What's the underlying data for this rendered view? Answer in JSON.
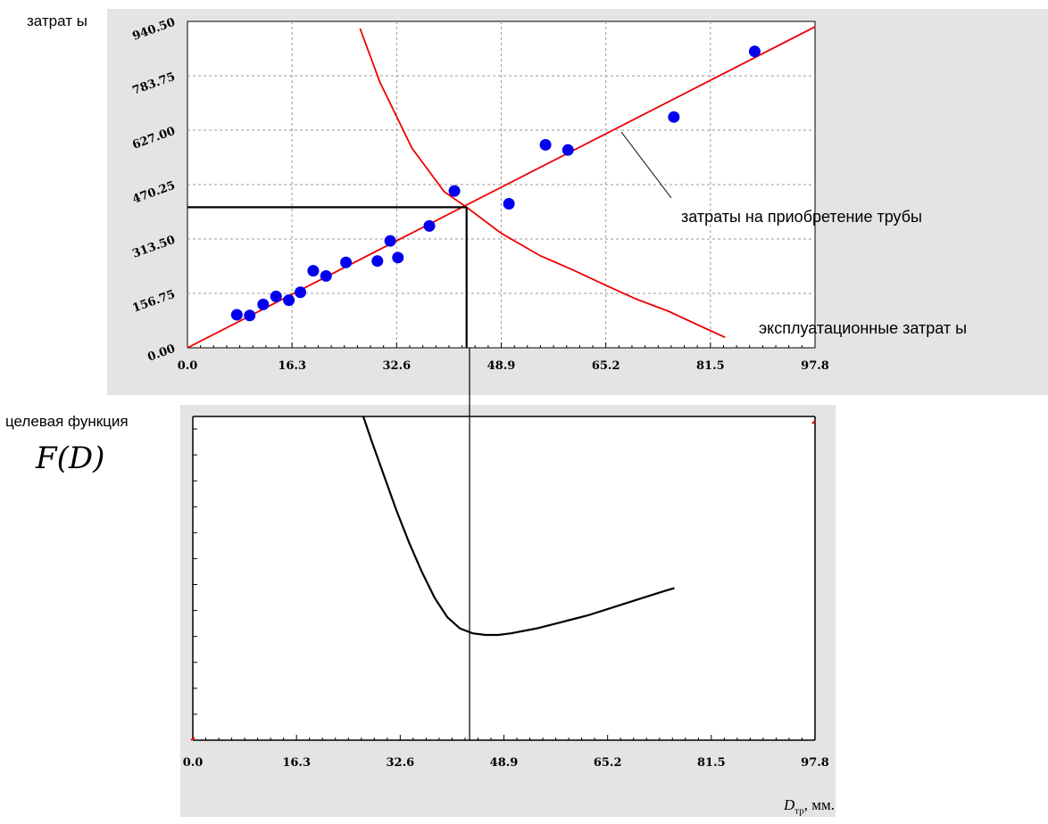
{
  "labels": {
    "top_ylabel": "затрат ы",
    "bottom_ylabel": "целевая функция",
    "fd": "F(D)",
    "series_purchase": "затраты на приобретение трубы",
    "series_operation": "эксплуатационные затрат ы",
    "xlabel_main": "D",
    "xlabel_sub": "тр",
    "xlabel_unit": ", мм."
  },
  "colors": {
    "panel": "#e4e4e4",
    "points": "#0000ee",
    "lines": "#ee0000",
    "objective": "#000000"
  },
  "chart_data": [
    {
      "type": "scatter",
      "xlim": [
        0,
        97.8
      ],
      "ylim": [
        0,
        940.5
      ],
      "xticks": [
        "0.0",
        "16.3",
        "32.6",
        "48.9",
        "65.2",
        "81.5",
        "97.8"
      ],
      "yticks": [
        "0.00",
        "156.75",
        "313.50",
        "470.25",
        "627.00",
        "783.75",
        "940.50"
      ],
      "grid": true,
      "ylabel": "затрат ы",
      "points": [
        [
          7.7,
          95
        ],
        [
          9.7,
          93
        ],
        [
          11.8,
          125
        ],
        [
          13.8,
          148
        ],
        [
          15.8,
          137
        ],
        [
          17.6,
          160
        ],
        [
          19.6,
          222
        ],
        [
          21.6,
          207
        ],
        [
          24.7,
          246
        ],
        [
          29.6,
          250
        ],
        [
          31.6,
          308
        ],
        [
          32.8,
          260
        ],
        [
          37.7,
          351
        ],
        [
          41.6,
          452
        ],
        [
          50.1,
          415
        ],
        [
          55.8,
          585
        ],
        [
          59.3,
          570
        ],
        [
          75.8,
          665
        ],
        [
          88.4,
          854
        ]
      ],
      "series": [
        {
          "name": "затраты на приобретение трубы",
          "type": "line",
          "x": [
            0,
            97.8
          ],
          "y": [
            0,
            925
          ]
        },
        {
          "name": "эксплуатационные затрат ы",
          "type": "line",
          "x": [
            26.9,
            30,
            35,
            40,
            43.5,
            48.9,
            55,
            60,
            65.2,
            70,
            75,
            80,
            83.8
          ],
          "y": [
            920,
            765,
            575,
            450,
            405,
            330,
            265,
            225,
            180,
            140,
            105,
            62,
            30
          ]
        }
      ],
      "optimum": {
        "x": 43.5,
        "y": 405
      }
    },
    {
      "type": "line",
      "xlim": [
        0,
        97.8
      ],
      "xticks": [
        "0.0",
        "16.3",
        "32.6",
        "48.9",
        "65.2",
        "81.5",
        "97.8"
      ],
      "ylabel": "целевая функция",
      "xlabel": "D_тр, мм.",
      "series": [
        {
          "name": "",
          "x": [
            26.8,
            28,
            30,
            32,
            34,
            36,
            38,
            40,
            42,
            44,
            46,
            48,
            50,
            54,
            58,
            62,
            66,
            70,
            74,
            75.7
          ],
          "y": [
            1.0,
            0.93,
            0.82,
            0.71,
            0.61,
            0.52,
            0.44,
            0.38,
            0.345,
            0.33,
            0.325,
            0.325,
            0.33,
            0.345,
            0.365,
            0.385,
            0.41,
            0.435,
            0.46,
            0.47
          ]
        }
      ],
      "optimum_x": 43.5
    }
  ]
}
